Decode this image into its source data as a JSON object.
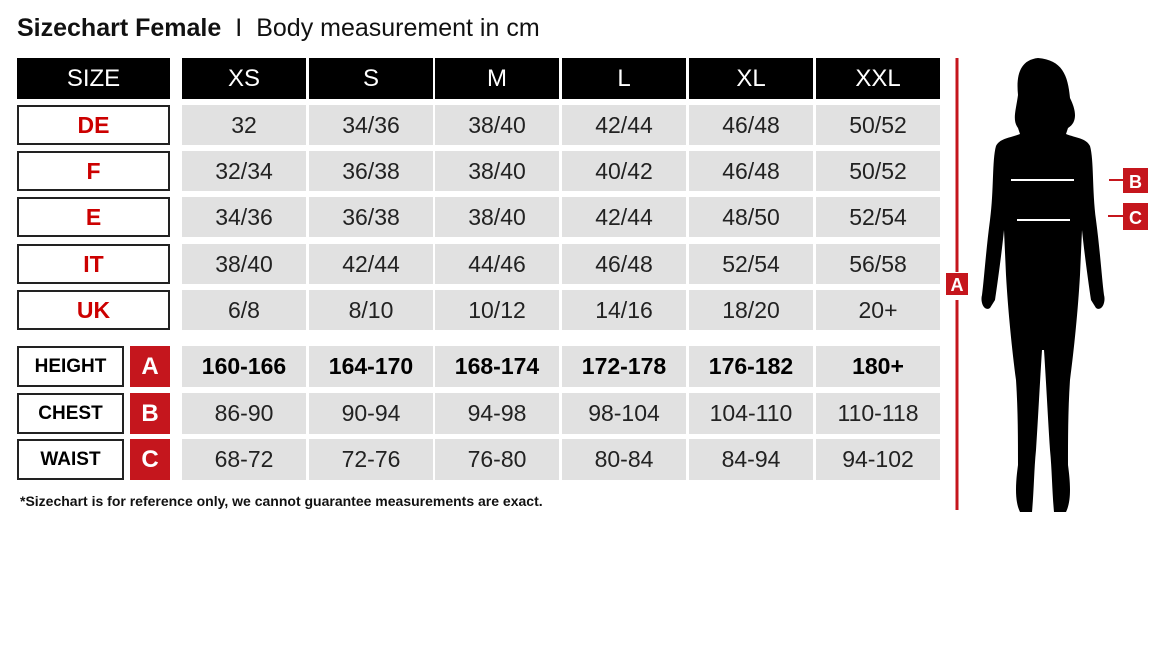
{
  "title": {
    "main": "Sizechart Female",
    "separator": "I",
    "sub": "Body measurement in cm"
  },
  "table": {
    "corner": "SIZE",
    "sizes": [
      "XS",
      "S",
      "M",
      "L",
      "XL",
      "XXL"
    ],
    "systems": [
      {
        "label": "DE",
        "values": [
          "32",
          "34/36",
          "38/40",
          "42/44",
          "46/48",
          "50/52"
        ]
      },
      {
        "label": "F",
        "values": [
          "32/34",
          "36/38",
          "38/40",
          "40/42",
          "46/48",
          "50/52"
        ]
      },
      {
        "label": "E",
        "values": [
          "34/36",
          "36/38",
          "38/40",
          "42/44",
          "48/50",
          "52/54"
        ]
      },
      {
        "label": "IT",
        "values": [
          "38/40",
          "42/44",
          "44/46",
          "46/48",
          "52/54",
          "56/58"
        ]
      },
      {
        "label": "UK",
        "values": [
          "6/8",
          "8/10",
          "10/12",
          "14/16",
          "18/20",
          "20+"
        ]
      }
    ],
    "measurements": [
      {
        "label": "HEIGHT",
        "letter": "A",
        "values": [
          "160-166",
          "164-170",
          "168-174",
          "172-178",
          "176-182",
          "180+"
        ]
      },
      {
        "label": "CHEST",
        "letter": "B",
        "values": [
          "86-90",
          "90-94",
          "94-98",
          "98-104",
          "104-110",
          "110-118"
        ]
      },
      {
        "label": "WAIST",
        "letter": "C",
        "values": [
          "68-72",
          "72-76",
          "76-80",
          "80-84",
          "84-94",
          "94-102"
        ]
      }
    ]
  },
  "note": "*Sizechart is for reference only, we cannot guarantee measurements are exact.",
  "figure": {
    "height_marker": "A",
    "chest_marker": "B",
    "waist_marker": "C"
  },
  "colors": {
    "accent_red": "#c5161d",
    "header_black": "#000000",
    "cell_gray": "#e1e1e1"
  }
}
